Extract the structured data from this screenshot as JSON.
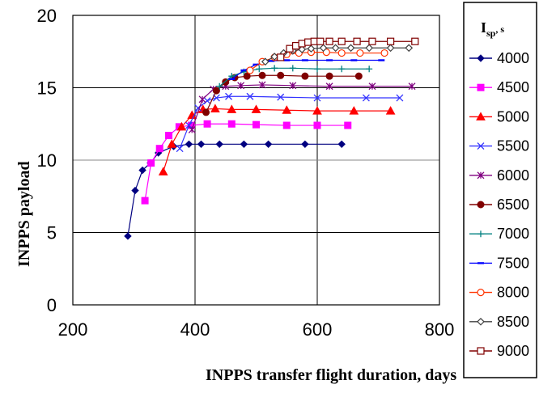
{
  "chart_data": {
    "type": "line",
    "xlabel": "INPPS transfer flight duration, days",
    "ylabel": "INPPS payload",
    "xlim": [
      200,
      800
    ],
    "ylim": [
      0,
      20
    ],
    "xticks": [
      "200",
      "400",
      "600",
      "800"
    ],
    "yticks": [
      "0",
      "5",
      "10",
      "15",
      "20"
    ],
    "grid": "major",
    "legend": {
      "title_main": "I",
      "title_sub": "sp",
      "title_unit": ", s",
      "placement": "right"
    },
    "series": [
      {
        "name": "4000",
        "color": "#000080",
        "marker": "diamond",
        "x": [
          290,
          302,
          314,
          327,
          340,
          365,
          390,
          410,
          440,
          480,
          520,
          580,
          640
        ],
        "y": [
          4.75,
          7.9,
          9.3,
          9.8,
          10.5,
          10.95,
          11.1,
          11.1,
          11.1,
          11.1,
          11.1,
          11.1,
          11.1
        ]
      },
      {
        "name": "4500",
        "color": "#ff00ff",
        "marker": "square",
        "x": [
          318,
          328,
          342,
          357,
          374,
          394,
          420,
          460,
          500,
          550,
          600,
          650
        ],
        "y": [
          7.2,
          9.8,
          10.8,
          11.7,
          12.3,
          12.4,
          12.5,
          12.5,
          12.45,
          12.4,
          12.4,
          12.4
        ],
        "show_markers": true
      },
      {
        "name": "5000",
        "color": "#ff0000",
        "marker": "triangle",
        "x": [
          348,
          362,
          378,
          395,
          413,
          433,
          460,
          500,
          550,
          600,
          660,
          720
        ],
        "y": [
          9.2,
          11.1,
          12.3,
          13.1,
          13.5,
          13.55,
          13.5,
          13.5,
          13.45,
          13.4,
          13.4,
          13.4
        ]
      },
      {
        "name": "5500",
        "color": "#3333ff",
        "marker": "x",
        "x": [
          375,
          390,
          405,
          420,
          435,
          455,
          490,
          540,
          600,
          680,
          735
        ],
        "y": [
          10.8,
          12.4,
          13.6,
          14.1,
          14.3,
          14.4,
          14.4,
          14.35,
          14.3,
          14.3,
          14.3
        ]
      },
      {
        "name": "6000",
        "color": "#800080",
        "marker": "star",
        "x": [
          395,
          412,
          430,
          450,
          475,
          510,
          560,
          620,
          690,
          755
        ],
        "y": [
          12.1,
          14.2,
          14.9,
          15.1,
          15.15,
          15.2,
          15.15,
          15.1,
          15.1,
          15.1
        ]
      },
      {
        "name": "6500",
        "color": "#800000",
        "marker": "circle",
        "x": [
          418,
          435,
          450,
          465,
          485,
          510,
          540,
          580,
          620,
          668
        ],
        "y": [
          13.3,
          14.8,
          15.4,
          15.7,
          15.8,
          15.85,
          15.85,
          15.8,
          15.8,
          15.8
        ]
      },
      {
        "name": "7000",
        "color": "#008080",
        "marker": "plus",
        "x": [
          440,
          460,
          480,
          505,
          530,
          560,
          600,
          640,
          685
        ],
        "y": [
          15.1,
          15.8,
          16.1,
          16.3,
          16.35,
          16.35,
          16.3,
          16.3,
          16.3
        ]
      },
      {
        "name": "7500",
        "color": "#0000ff",
        "marker": "dash",
        "x": [
          460,
          480,
          500,
          525,
          550,
          580,
          620,
          660,
          705
        ],
        "y": [
          15.6,
          16.2,
          16.6,
          16.85,
          16.9,
          16.9,
          16.9,
          16.9,
          16.9
        ]
      },
      {
        "name": "8000",
        "color": "#ff3300",
        "marker": "open-circle",
        "x": [
          490,
          510,
          530,
          550,
          570,
          590,
          615,
          640,
          670,
          710
        ],
        "y": [
          16.2,
          16.8,
          17.1,
          17.3,
          17.4,
          17.45,
          17.45,
          17.4,
          17.4,
          17.4
        ]
      },
      {
        "name": "8500",
        "color": "#404040",
        "marker": "open-diamond",
        "x": [
          515,
          530,
          545,
          560,
          575,
          590,
          610,
          630,
          655,
          685,
          720,
          750
        ],
        "y": [
          16.8,
          17.15,
          17.4,
          17.55,
          17.65,
          17.7,
          17.75,
          17.75,
          17.75,
          17.75,
          17.75,
          17.75
        ]
      },
      {
        "name": "9000",
        "color": "#800000",
        "marker": "open-square",
        "x": [
          540,
          555,
          565,
          575,
          585,
          595,
          605,
          620,
          640,
          665,
          690,
          720,
          760
        ],
        "y": [
          17.1,
          17.7,
          17.9,
          18.05,
          18.15,
          18.2,
          18.2,
          18.2,
          18.2,
          18.2,
          18.2,
          18.2,
          18.2
        ]
      }
    ]
  }
}
